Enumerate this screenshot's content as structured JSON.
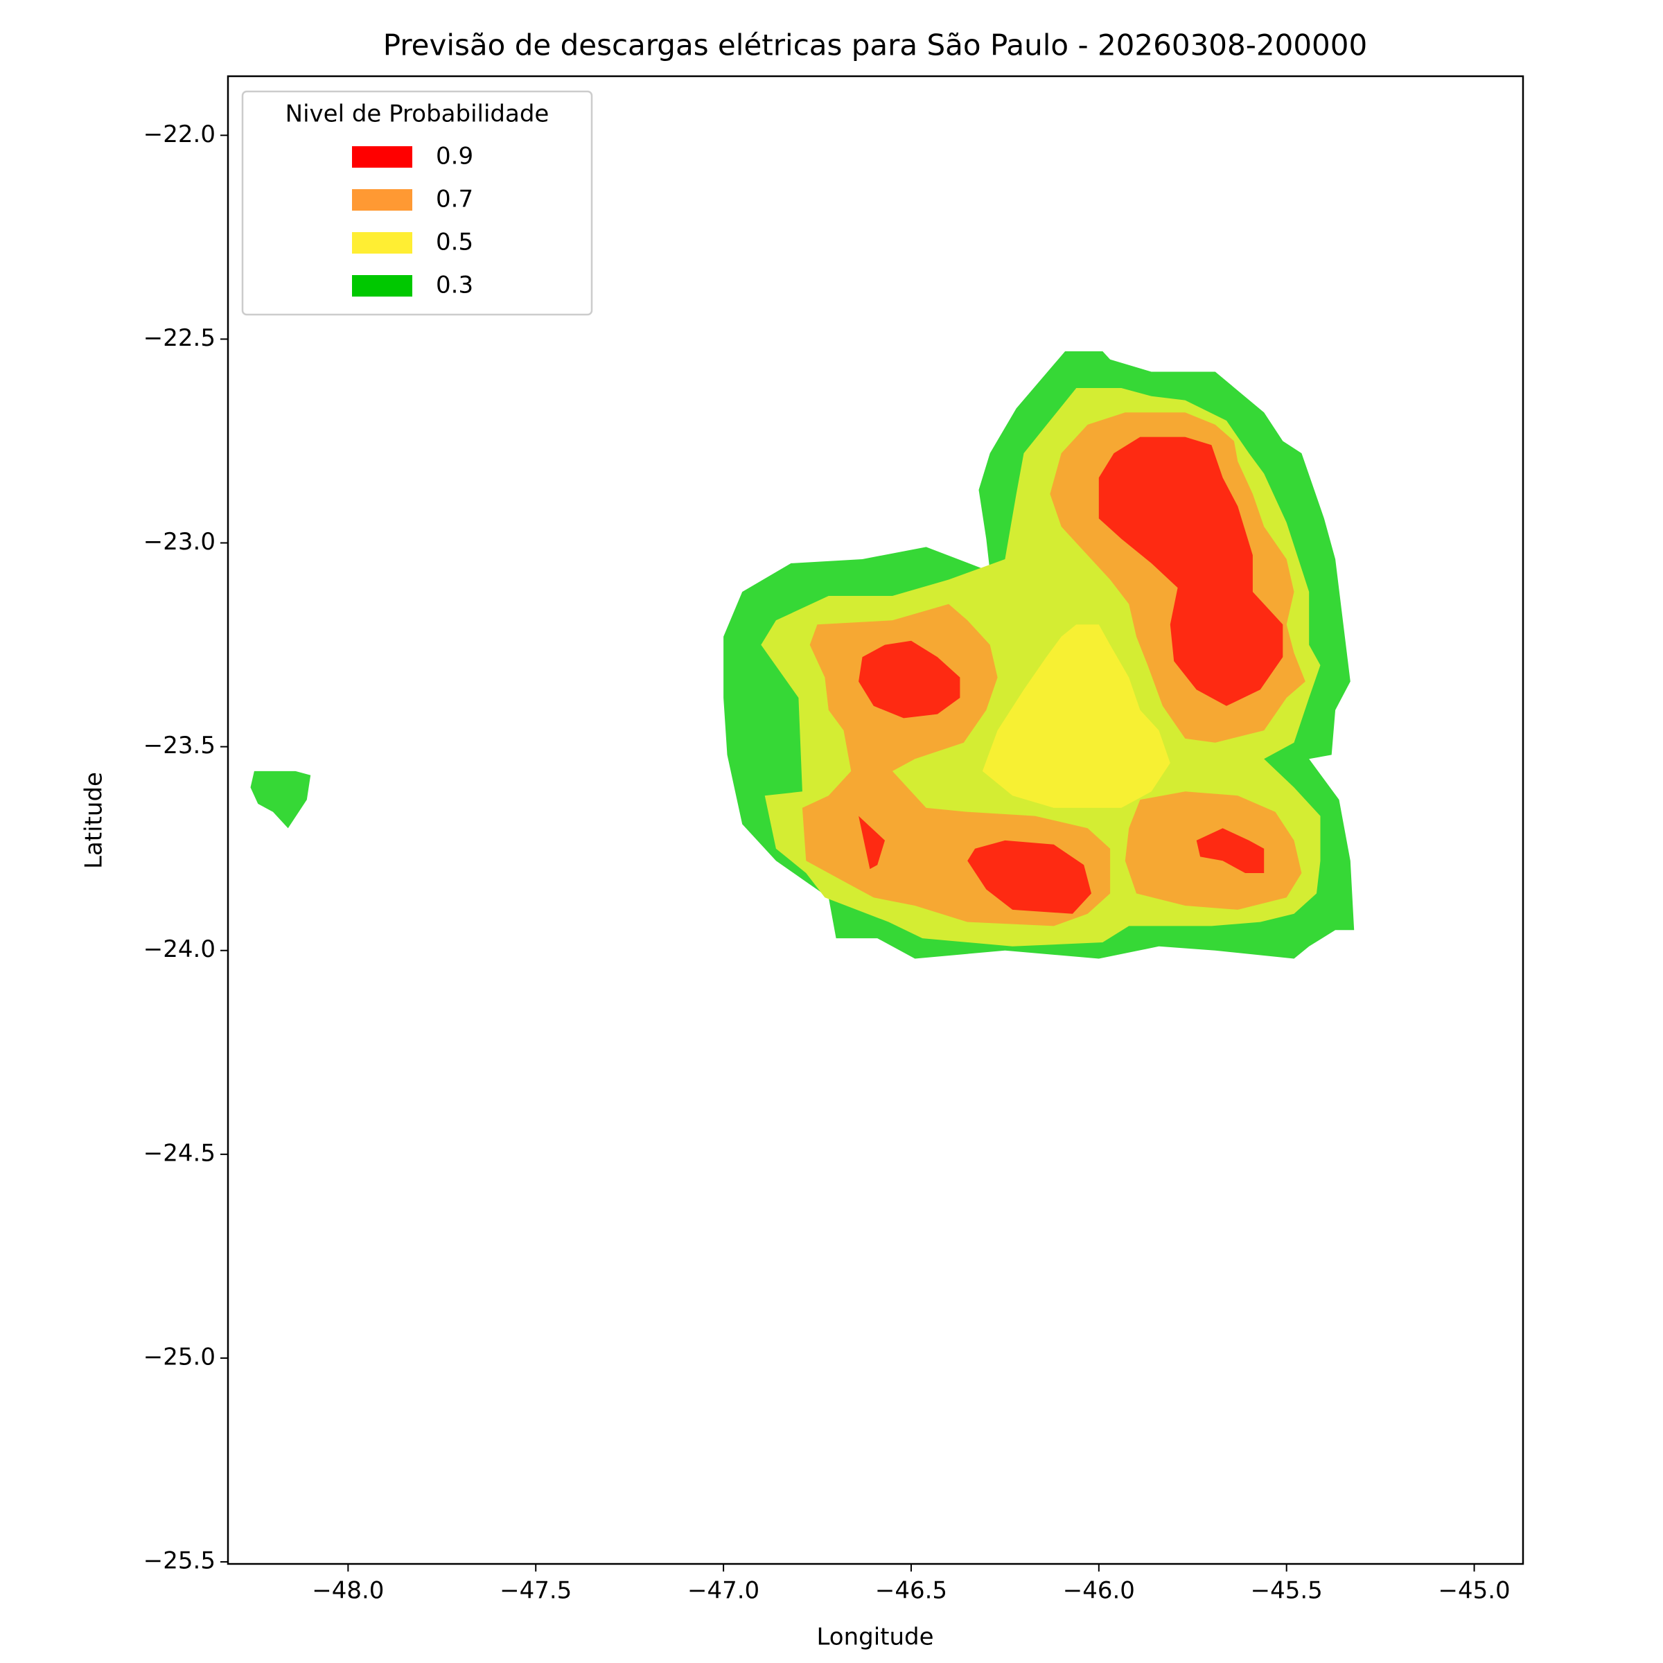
{
  "chart_data": {
    "type": "contour",
    "title": "Previsão de descargas elétricas para São Paulo - 20260308-200000",
    "x_label": "Longitude",
    "y_label": "Latitude",
    "xlim": [
      -48.32,
      -44.87
    ],
    "ylim": [
      -25.505,
      -21.855
    ],
    "xticks": [
      {
        "value": -48.0,
        "label": "−48.0"
      },
      {
        "value": -47.5,
        "label": "−47.5"
      },
      {
        "value": -47.0,
        "label": "−47.0"
      },
      {
        "value": -46.5,
        "label": "−46.5"
      },
      {
        "value": -46.0,
        "label": "−46.0"
      },
      {
        "value": -45.5,
        "label": "−45.5"
      },
      {
        "value": -45.0,
        "label": "−45.0"
      }
    ],
    "yticks": [
      {
        "value": -22.0,
        "label": "−22.0"
      },
      {
        "value": -22.5,
        "label": "−22.5"
      },
      {
        "value": -23.0,
        "label": "−23.0"
      },
      {
        "value": -23.5,
        "label": "−23.5"
      },
      {
        "value": -24.0,
        "label": "−24.0"
      },
      {
        "value": -24.5,
        "label": "−24.5"
      },
      {
        "value": -25.0,
        "label": "−25.0"
      },
      {
        "value": -25.5,
        "label": "−25.5"
      }
    ],
    "legend": {
      "title": "Nivel de Probabilidade",
      "loc": "upper left",
      "levels": [
        0.9,
        0.7,
        0.5,
        0.3
      ],
      "colors": [
        "#ff0000",
        "#ff9933",
        "#ffee33",
        "#00c800"
      ]
    },
    "regions": [
      {
        "color": "#36d836",
        "lon": [
          -46.06,
          -45.99,
          -45.97,
          -45.86,
          -45.69,
          -45.56,
          -45.51,
          -45.46,
          -45.4,
          -45.37,
          -45.33,
          -45.37,
          -45.38,
          -45.44,
          -45.36,
          -45.33,
          -45.32,
          -45.37,
          -45.44,
          -45.48,
          -45.69,
          -45.84,
          -46.0,
          -46.25,
          -46.49,
          -46.59,
          -46.7,
          -46.72,
          -46.86,
          -46.95,
          -46.99,
          -47.0,
          -47.0,
          -46.95,
          -46.82,
          -46.63,
          -46.46,
          -46.29,
          -46.3,
          -46.32,
          -46.29,
          -46.22,
          -46.09
        ],
        "lat": [
          -22.53,
          -22.53,
          -22.55,
          -22.58,
          -22.58,
          -22.68,
          -22.75,
          -22.78,
          -22.94,
          -23.04,
          -23.34,
          -23.41,
          -23.52,
          -23.53,
          -23.63,
          -23.78,
          -23.95,
          -23.95,
          -23.99,
          -24.02,
          -24.0,
          -23.99,
          -24.02,
          -24.0,
          -24.02,
          -23.97,
          -23.97,
          -23.87,
          -23.78,
          -23.69,
          -23.52,
          -23.38,
          -23.23,
          -23.12,
          -23.05,
          -23.04,
          -23.01,
          -23.07,
          -22.99,
          -22.87,
          -22.78,
          -22.67,
          -22.53
        ]
      },
      {
        "color": "#36d836",
        "lon": [
          -48.25,
          -48.14,
          -48.1,
          -48.11,
          -48.16,
          -48.2,
          -48.24,
          -48.26
        ],
        "lat": [
          -23.56,
          -23.56,
          -23.57,
          -23.63,
          -23.7,
          -23.66,
          -23.64,
          -23.6
        ]
      },
      {
        "color": "#d4ed33",
        "lon": [
          -46.06,
          -45.94,
          -45.86,
          -45.77,
          -45.66,
          -45.6,
          -45.56,
          -45.5,
          -45.44,
          -45.44,
          -45.41,
          -45.44,
          -45.48,
          -45.56,
          -45.48,
          -45.41,
          -45.41,
          -45.42,
          -45.48,
          -45.57,
          -45.7,
          -45.92,
          -45.99,
          -46.23,
          -46.47,
          -46.56,
          -46.73,
          -46.78,
          -46.86,
          -46.89,
          -46.79,
          -46.8,
          -46.9,
          -46.86,
          -46.72,
          -46.55,
          -46.4,
          -46.25,
          -46.22,
          -46.2,
          -46.13
        ],
        "lat": [
          -22.62,
          -22.62,
          -22.64,
          -22.65,
          -22.7,
          -22.78,
          -22.83,
          -22.95,
          -23.12,
          -23.25,
          -23.3,
          -23.38,
          -23.49,
          -23.53,
          -23.6,
          -23.67,
          -23.78,
          -23.86,
          -23.91,
          -23.93,
          -23.94,
          -23.94,
          -23.98,
          -23.99,
          -23.97,
          -23.93,
          -23.87,
          -23.81,
          -23.75,
          -23.62,
          -23.61,
          -23.38,
          -23.25,
          -23.19,
          -23.13,
          -23.13,
          -23.09,
          -23.04,
          -22.88,
          -22.78,
          -22.7
        ]
      },
      {
        "color": "#f6a833",
        "lon": [
          -45.93,
          -45.77,
          -45.69,
          -45.64,
          -45.63,
          -45.59,
          -45.56,
          -45.5,
          -45.48,
          -45.5,
          -45.48,
          -45.45,
          -45.5,
          -45.56,
          -45.69,
          -45.77,
          -45.83,
          -45.87,
          -45.9,
          -45.92,
          -45.97,
          -46.03,
          -46.1,
          -46.13,
          -46.1,
          -46.03
        ],
        "lat": [
          -22.68,
          -22.68,
          -22.71,
          -22.75,
          -22.8,
          -22.88,
          -22.96,
          -23.04,
          -23.12,
          -23.2,
          -23.27,
          -23.34,
          -23.38,
          -23.46,
          -23.49,
          -23.48,
          -23.4,
          -23.3,
          -23.23,
          -23.15,
          -23.09,
          -23.03,
          -22.96,
          -22.88,
          -22.78,
          -22.71
        ]
      },
      {
        "color": "#f6a833",
        "lon": [
          -46.75,
          -46.55,
          -46.4,
          -46.35,
          -46.29,
          -46.27,
          -46.3,
          -46.36,
          -46.49,
          -46.55,
          -46.46,
          -46.35,
          -46.17,
          -46.03,
          -45.97,
          -45.97,
          -46.03,
          -46.12,
          -46.35,
          -46.49,
          -46.6,
          -46.7,
          -46.78,
          -46.79,
          -46.72,
          -46.66,
          -46.68,
          -46.72,
          -46.73,
          -46.77
        ],
        "lat": [
          -23.2,
          -23.19,
          -23.15,
          -23.19,
          -23.25,
          -23.33,
          -23.41,
          -23.49,
          -23.53,
          -23.56,
          -23.65,
          -23.66,
          -23.67,
          -23.7,
          -23.75,
          -23.86,
          -23.91,
          -23.94,
          -23.93,
          -23.89,
          -23.87,
          -23.82,
          -23.78,
          -23.65,
          -23.62,
          -23.56,
          -23.46,
          -23.41,
          -23.33,
          -23.25
        ]
      },
      {
        "color": "#f6a833",
        "lon": [
          -45.89,
          -45.77,
          -45.63,
          -45.53,
          -45.48,
          -45.46,
          -45.5,
          -45.63,
          -45.77,
          -45.9,
          -45.93,
          -45.92
        ],
        "lat": [
          -23.63,
          -23.61,
          -23.62,
          -23.66,
          -23.73,
          -23.81,
          -23.87,
          -23.9,
          -23.89,
          -23.86,
          -23.78,
          -23.7
        ]
      },
      {
        "color": "#f7f033",
        "lon": [
          -46.06,
          -46.0,
          -45.97,
          -45.92,
          -45.89,
          -45.84,
          -45.81,
          -45.86,
          -45.94,
          -46.12,
          -46.23,
          -46.31,
          -46.27,
          -46.2,
          -46.14,
          -46.1
        ],
        "lat": [
          -23.2,
          -23.2,
          -23.25,
          -23.33,
          -23.41,
          -23.46,
          -23.54,
          -23.61,
          -23.65,
          -23.65,
          -23.62,
          -23.56,
          -23.46,
          -23.36,
          -23.28,
          -23.23
        ]
      },
      {
        "color": "#fe2a12",
        "lon": [
          -45.96,
          -45.89,
          -45.77,
          -45.7,
          -45.67,
          -45.63,
          -45.59,
          -45.59,
          -45.51,
          -45.51,
          -45.57,
          -45.66,
          -45.74,
          -45.8,
          -45.81,
          -45.79,
          -45.86,
          -45.94,
          -46.0,
          -46.0
        ],
        "lat": [
          -22.78,
          -22.74,
          -22.74,
          -22.76,
          -22.84,
          -22.91,
          -23.03,
          -23.12,
          -23.2,
          -23.28,
          -23.36,
          -23.4,
          -23.36,
          -23.29,
          -23.2,
          -23.11,
          -23.05,
          -22.99,
          -22.94,
          -22.84
        ]
      },
      {
        "color": "#fe2a12",
        "lon": [
          -46.63,
          -46.57,
          -46.5,
          -46.43,
          -46.37,
          -46.37,
          -46.43,
          -46.52,
          -46.6,
          -46.64
        ],
        "lat": [
          -23.28,
          -23.25,
          -23.24,
          -23.28,
          -23.33,
          -23.38,
          -23.42,
          -23.43,
          -23.4,
          -23.34
        ]
      },
      {
        "color": "#fe2a12",
        "lon": [
          -46.33,
          -46.25,
          -46.12,
          -46.04,
          -46.02,
          -46.07,
          -46.23,
          -46.3,
          -46.35
        ],
        "lat": [
          -23.75,
          -23.73,
          -23.74,
          -23.79,
          -23.86,
          -23.91,
          -23.9,
          -23.85,
          -23.78
        ]
      },
      {
        "color": "#fe2a12",
        "lon": [
          -46.64,
          -46.57,
          -46.59,
          -46.61
        ],
        "lat": [
          -23.67,
          -23.73,
          -23.79,
          -23.8
        ]
      },
      {
        "color": "#fe2a12",
        "lon": [
          -45.74,
          -45.67,
          -45.6,
          -45.56,
          -45.56,
          -45.61,
          -45.67,
          -45.73
        ],
        "lat": [
          -23.73,
          -23.7,
          -23.73,
          -23.75,
          -23.81,
          -23.81,
          -23.78,
          -23.77
        ]
      }
    ]
  }
}
